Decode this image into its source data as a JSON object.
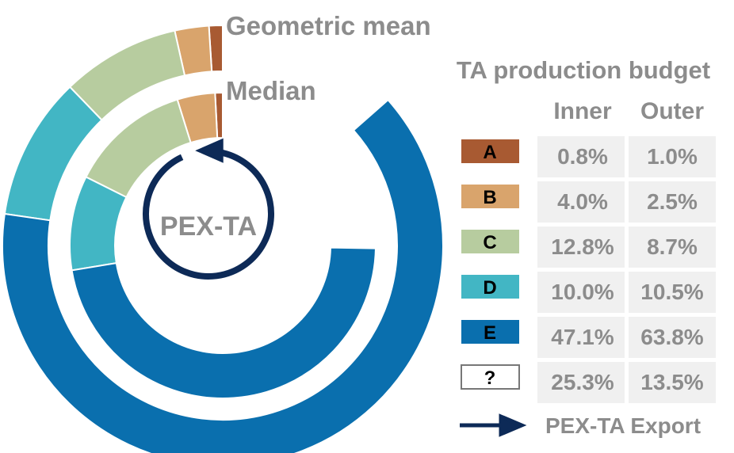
{
  "chart_data": {
    "type": "nested-donut",
    "title": "TA production budget",
    "center_label": "PEX-TA",
    "ring_labels": {
      "outer": "Geometric mean",
      "inner": "Median"
    },
    "column_headers": {
      "inner": "Inner",
      "outer": "Outer"
    },
    "categories": [
      {
        "key": "A",
        "color": "#a85a32",
        "inner": 0.8,
        "outer": 1.0,
        "inner_label": "0.8%",
        "outer_label": "1.0%"
      },
      {
        "key": "B",
        "color": "#d9a46c",
        "inner": 4.0,
        "outer": 2.5,
        "inner_label": "4.0%",
        "outer_label": "2.5%"
      },
      {
        "key": "C",
        "color": "#b7cc9f",
        "inner": 12.8,
        "outer": 8.7,
        "inner_label": "12.8%",
        "outer_label": "8.7%"
      },
      {
        "key": "D",
        "color": "#42b6c4",
        "inner": 10.0,
        "outer": 10.5,
        "inner_label": "10.0%",
        "outer_label": "10.5%"
      },
      {
        "key": "E",
        "color": "#0a6fae",
        "inner": 47.1,
        "outer": 63.8,
        "inner_label": "47.1%",
        "outer_label": "63.8%"
      },
      {
        "key": "?",
        "color": "#ffffff",
        "inner": 25.3,
        "outer": 13.5,
        "inner_label": "25.3%",
        "outer_label": "13.5%"
      }
    ],
    "arrow_legend": {
      "label": "PEX-TA Export",
      "color": "#0d2a57"
    }
  }
}
